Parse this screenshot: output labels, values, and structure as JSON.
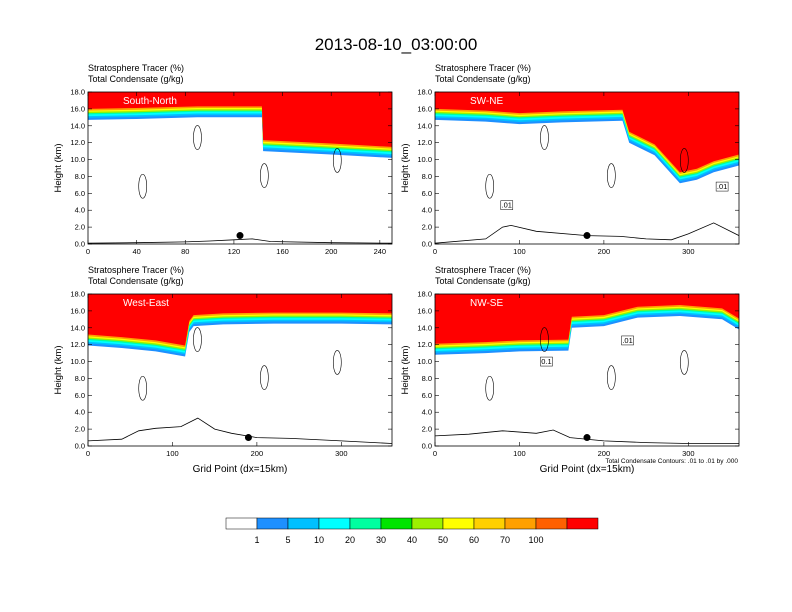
{
  "figure": {
    "title": "2013-08-10_03:00:00",
    "footnote": "Total Condensate Contours: .01 to .01 by .000",
    "colors": {
      "background": "#ffffff",
      "tracer_top": "#ff0000"
    }
  },
  "colorbar": {
    "labels": [
      "1",
      "5",
      "10",
      "20",
      "30",
      "40",
      "50",
      "60",
      "70",
      "100"
    ],
    "colors": [
      "#ffffff",
      "#1e90ff",
      "#00c0ff",
      "#00ffff",
      "#00ffa0",
      "#00e400",
      "#9cf000",
      "#ffff00",
      "#ffd000",
      "#ffa000",
      "#ff6000",
      "#ff0000"
    ]
  },
  "chart_data": [
    {
      "type": "contour",
      "panel": "South-North",
      "header_line1": "Stratosphere Tracer   (%)",
      "header_line2": "Total Condensate   (g/kg)",
      "ylabel": "Height (km)",
      "xlabel": "",
      "xlim": [
        0,
        250
      ],
      "ylim": [
        0,
        18
      ],
      "xticks": [
        "0",
        "40",
        "80",
        "120",
        "160",
        "200",
        "240"
      ],
      "yticks": [
        "0.0",
        "2.0",
        "4.0",
        "6.0",
        "8.0",
        "10.0",
        "12.0",
        "14.0",
        "16.0",
        "18.0"
      ],
      "tracer_base_km": {
        "x": [
          0,
          40,
          90,
          143,
          144,
          200,
          250
        ],
        "y": [
          14.7,
          14.8,
          15.0,
          15.0,
          11.0,
          10.6,
          10.2
        ]
      },
      "terrain_km": {
        "x": [
          0,
          40,
          80,
          100,
          120,
          135,
          150,
          200,
          250
        ],
        "y": [
          0.1,
          0.15,
          0.25,
          0.35,
          0.5,
          0.6,
          0.3,
          0.15,
          0.1
        ]
      },
      "marker": {
        "x": 125,
        "y": 1.0
      },
      "contour_labels": []
    },
    {
      "type": "contour",
      "panel": "SW-NE",
      "header_line1": "Stratosphere Tracer   (%)",
      "header_line2": "Total Condensate   (g/kg)",
      "ylabel": "Height (km)",
      "xlabel": "",
      "xlim": [
        0,
        360
      ],
      "ylim": [
        0,
        18
      ],
      "xticks": [
        "0",
        "100",
        "200",
        "300"
      ],
      "yticks": [
        "0.0",
        "2.0",
        "4.0",
        "6.0",
        "8.0",
        "10.0",
        "12.0",
        "14.0",
        "16.0",
        "18.0"
      ],
      "tracer_base_km": {
        "x": [
          0,
          60,
          100,
          150,
          222,
          230,
          260,
          290,
          310,
          330,
          360
        ],
        "y": [
          14.7,
          14.5,
          14.2,
          14.4,
          14.6,
          12.0,
          10.5,
          7.2,
          7.6,
          8.5,
          9.3
        ]
      },
      "terrain_km": {
        "x": [
          0,
          60,
          80,
          90,
          120,
          180,
          220,
          250,
          280,
          300,
          330,
          360
        ],
        "y": [
          0.1,
          0.6,
          2.0,
          2.2,
          1.5,
          1.0,
          0.9,
          0.6,
          0.5,
          1.2,
          2.5,
          1.0
        ]
      },
      "marker": {
        "x": 180,
        "y": 1.0
      },
      "contour_labels": [
        {
          "text": ".01",
          "x": 85,
          "y": 4.6
        },
        {
          "text": ".01",
          "x": 340,
          "y": 6.8
        }
      ]
    },
    {
      "type": "contour",
      "panel": "West-East",
      "header_line1": "Stratosphere Tracer   (%)",
      "header_line2": "Total Condensate   (g/kg)",
      "ylabel": "Height (km)",
      "xlabel": "Grid Point (dx=15km)",
      "xlim": [
        0,
        360
      ],
      "ylim": [
        0,
        18
      ],
      "xticks": [
        "0",
        "100",
        "200",
        "300"
      ],
      "yticks": [
        "0.0",
        "2.0",
        "4.0",
        "6.0",
        "8.0",
        "10.0",
        "12.0",
        "14.0",
        "16.0",
        "18.0"
      ],
      "tracer_base_km": {
        "x": [
          0,
          40,
          80,
          115,
          120,
          125,
          160,
          220,
          300,
          360
        ],
        "y": [
          11.9,
          11.6,
          11.2,
          10.6,
          13.5,
          14.2,
          14.4,
          14.5,
          14.5,
          14.4
        ]
      },
      "terrain_km": {
        "x": [
          0,
          40,
          60,
          80,
          110,
          130,
          150,
          170,
          200,
          240,
          300,
          360
        ],
        "y": [
          0.6,
          0.8,
          1.8,
          2.1,
          2.3,
          3.3,
          2.0,
          1.5,
          1.0,
          0.9,
          0.6,
          0.3
        ]
      },
      "marker": {
        "x": 190,
        "y": 1.0
      },
      "contour_labels": []
    },
    {
      "type": "contour",
      "panel": "NW-SE",
      "header_line1": "Stratosphere Tracer   (%)",
      "header_line2": "Total Condensate   (g/kg)",
      "ylabel": "Height (km)",
      "xlabel": "Grid Point (dx=15km)",
      "xlim": [
        0,
        360
      ],
      "ylim": [
        0,
        18
      ],
      "xticks": [
        "0",
        "100",
        "200",
        "300"
      ],
      "yticks": [
        "0.0",
        "2.0",
        "4.0",
        "6.0",
        "8.0",
        "10.0",
        "12.0",
        "14.0",
        "16.0",
        "18.0"
      ],
      "tracer_base_km": {
        "x": [
          0,
          60,
          100,
          158,
          162,
          200,
          240,
          290,
          340,
          360
        ],
        "y": [
          10.8,
          11.0,
          11.2,
          11.3,
          14.0,
          14.2,
          15.2,
          15.4,
          15.0,
          13.8
        ]
      },
      "terrain_km": {
        "x": [
          0,
          40,
          80,
          120,
          140,
          160,
          200,
          250,
          300,
          360
        ],
        "y": [
          1.2,
          1.4,
          1.8,
          1.5,
          1.9,
          1.0,
          0.6,
          0.4,
          0.3,
          0.3
        ]
      },
      "marker": {
        "x": 180,
        "y": 1.0
      },
      "contour_labels": [
        {
          "text": "0.1",
          "x": 132,
          "y": 10.0
        },
        {
          "text": ".01",
          "x": 228,
          "y": 12.5
        }
      ]
    }
  ]
}
